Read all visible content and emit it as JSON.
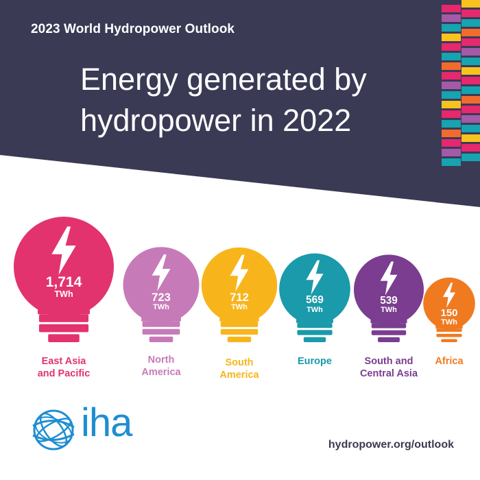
{
  "header": {
    "subtitle": "2023 World Hydropower Outlook",
    "title_line1": "Energy generated by",
    "title_line2": "hydropower in 2022"
  },
  "colors": {
    "header_bg": "#3a3a55",
    "stripe_pink": "#e6286e",
    "stripe_teal": "#17a3b0",
    "stripe_yellow": "#f9c31f",
    "stripe_orange": "#f26b2d",
    "stripe_purple": "#a35ba8"
  },
  "chart_data": {
    "type": "pictogram",
    "unit": "TWh",
    "categories": [
      "East Asia and Pacific",
      "North America",
      "South America",
      "Europe",
      "South and Central Asia",
      "Africa"
    ],
    "values": [
      1714,
      723,
      712,
      569,
      539,
      150
    ],
    "value_labels": [
      "1,714",
      "723",
      "712",
      "569",
      "539",
      "150"
    ],
    "series_colors": [
      "#e2336f",
      "#c77ab8",
      "#f8b51b",
      "#1a9aaa",
      "#7a3d8f",
      "#f07a20"
    ],
    "region_labels": [
      [
        "East Asia",
        "and Pacific"
      ],
      [
        "North",
        "America"
      ],
      [
        "South",
        "America"
      ],
      [
        "Europe"
      ],
      [
        "South and",
        "Central Asia"
      ],
      [
        "Africa"
      ]
    ]
  },
  "logo": {
    "text": "iha",
    "icon": "globe-logo-icon"
  },
  "footer": {
    "url": "hydropower.org/outlook"
  }
}
